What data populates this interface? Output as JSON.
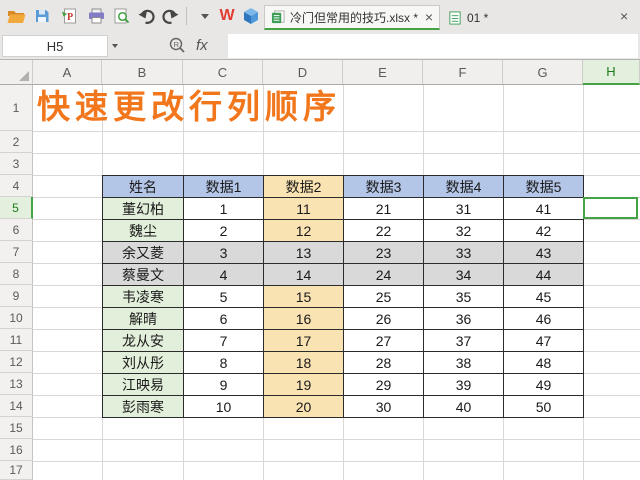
{
  "glyphs": {
    "close": "×"
  },
  "toolbar": {
    "icons": [
      "open",
      "save",
      "export-pdf",
      "print",
      "print-preview",
      "undo",
      "redo",
      "more-dropdown",
      "wps-writer",
      "wps-3d-cube"
    ]
  },
  "tabs": {
    "documents": [
      {
        "label": "冷门但常用的技巧.xlsx *",
        "active": true
      },
      {
        "label": "01 *",
        "active": false
      }
    ]
  },
  "formula_bar": {
    "name_box": "H5",
    "fx_label": "fx",
    "formula_value": ""
  },
  "sheet": {
    "columns": [
      "A",
      "B",
      "C",
      "D",
      "E",
      "F",
      "G",
      "H"
    ],
    "rows": [
      "1",
      "2",
      "3",
      "4",
      "5",
      "6",
      "7",
      "8",
      "9",
      "10",
      "11",
      "12",
      "13",
      "14",
      "15",
      "16",
      "17"
    ],
    "active_cell": "H5",
    "active_column": "H",
    "active_row": "5",
    "title": "快速更改行列顺序"
  },
  "table": {
    "headers": [
      "姓名",
      "数据1",
      "数据2",
      "数据3",
      "数据4",
      "数据5"
    ],
    "highlight_header": "数据2",
    "rows": [
      {
        "name": "董幻柏",
        "values": [
          "1",
          "11",
          "21",
          "31",
          "41"
        ],
        "shade": "normal"
      },
      {
        "name": "魏尘",
        "values": [
          "2",
          "12",
          "22",
          "32",
          "42"
        ],
        "shade": "normal"
      },
      {
        "name": "余又菱",
        "values": [
          "3",
          "13",
          "23",
          "33",
          "43"
        ],
        "shade": "gray"
      },
      {
        "name": "蔡曼文",
        "values": [
          "4",
          "14",
          "24",
          "34",
          "44"
        ],
        "shade": "gray"
      },
      {
        "name": "韦凌寒",
        "values": [
          "5",
          "15",
          "25",
          "35",
          "45"
        ],
        "shade": "normal"
      },
      {
        "name": "解晴",
        "values": [
          "6",
          "16",
          "26",
          "36",
          "46"
        ],
        "shade": "normal"
      },
      {
        "name": "龙从安",
        "values": [
          "7",
          "17",
          "27",
          "37",
          "47"
        ],
        "shade": "normal"
      },
      {
        "name": "刘从彤",
        "values": [
          "8",
          "18",
          "28",
          "38",
          "48"
        ],
        "shade": "normal"
      },
      {
        "name": "江映易",
        "values": [
          "9",
          "19",
          "29",
          "39",
          "49"
        ],
        "shade": "normal"
      },
      {
        "name": "彭雨寒",
        "values": [
          "10",
          "20",
          "30",
          "40",
          "50"
        ],
        "shade": "normal"
      }
    ]
  },
  "colors": {
    "accent_green": "#45A245",
    "selection_text": "#1E7C1E",
    "selection_tint": "#E3F0DD",
    "title_orange": "#F2761B",
    "header_blue": "#B4C6E7",
    "highlight_tan": "#FAE3B2",
    "name_green": "#E2EFDA",
    "row_gray": "#D9D9D9",
    "table_border": "#2B2B2B"
  }
}
